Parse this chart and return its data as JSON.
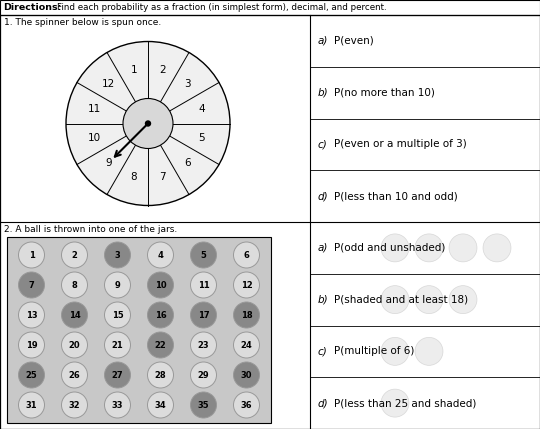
{
  "title_bold": "Directions:",
  "title_rest": " Find each probability as a fraction (in simplest form), decimal, and percent.",
  "section1_label": "1. The spinner below is spun once.",
  "section2_label": "2. A ball is thrown into one of the jars.",
  "spinner_order": [
    2,
    3,
    4,
    5,
    6,
    7,
    8,
    9,
    10,
    11,
    12,
    1
  ],
  "right_labels_top": [
    "a) P(even)",
    "b) P(no more than 10)",
    "c) P(even or a multiple of 3)",
    "d) P(less than 10 and odd)"
  ],
  "right_labels_bottom": [
    "a) P(odd and unshaded)",
    "b) P(shaded and at least 18)",
    "c) P(multiple of 6)",
    "d) P(less than 25 and shaded)"
  ],
  "grid_numbers": [
    [
      1,
      2,
      3,
      4,
      5,
      6
    ],
    [
      7,
      8,
      9,
      10,
      11,
      12
    ],
    [
      13,
      14,
      15,
      16,
      17,
      18
    ],
    [
      19,
      20,
      21,
      22,
      23,
      24
    ],
    [
      25,
      26,
      27,
      28,
      29,
      30
    ],
    [
      31,
      32,
      33,
      34,
      35,
      36
    ]
  ],
  "shaded_balls": [
    3,
    5,
    7,
    10,
    14,
    16,
    17,
    18,
    22,
    25,
    27,
    30,
    35
  ],
  "bg_color": "#edecea",
  "shaded_color": "#888888",
  "unshaded_color": "#dcdcdc",
  "spinner_bg": "#f0f0f0",
  "spinner_center_color": "#d8d8d8",
  "grid_bg": "#c8c8c8",
  "answer_bg": "#dcdcdc"
}
